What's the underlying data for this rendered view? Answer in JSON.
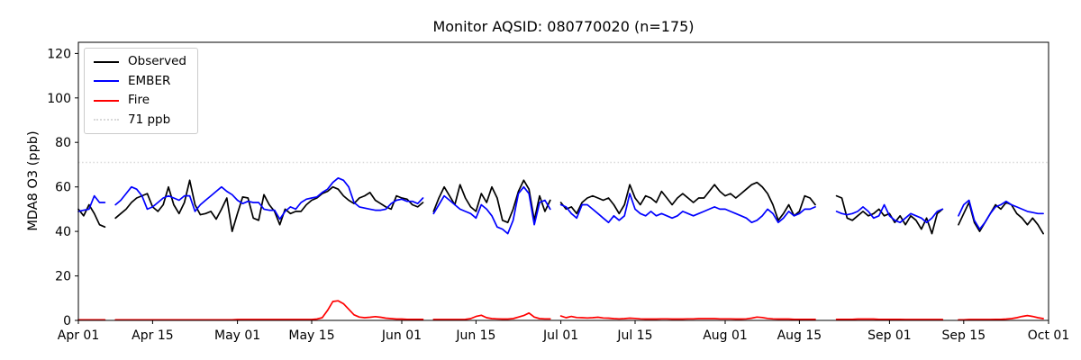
{
  "chart_data": {
    "type": "line",
    "title": "Monitor AQSID: 080770020 (n=175)",
    "ylabel": "MDA8 O3 (ppb)",
    "background": "#ffffff",
    "x_axis": {
      "start_date": "Apr 01",
      "end_date": "Oct 01",
      "cadence": "daily",
      "total_days": 183,
      "tick_labels": [
        "Apr 01",
        "Apr 15",
        "May 01",
        "May 15",
        "Jun 01",
        "Jun 15",
        "Jul 01",
        "Jul 15",
        "Aug 01",
        "Aug 15",
        "Sep 01",
        "Sep 15",
        "Oct 01"
      ],
      "tick_day_offsets": [
        0,
        14,
        30,
        44,
        61,
        75,
        91,
        105,
        122,
        136,
        153,
        167,
        183
      ]
    },
    "y_axis": {
      "ticks": [
        0,
        20,
        40,
        60,
        80,
        100,
        120
      ],
      "lim": [
        0,
        125
      ]
    },
    "reference_line": {
      "value": 71,
      "label": "71 ppb",
      "color": "#d9d9d9",
      "style": "dotted"
    },
    "legend": {
      "position": "upper-left",
      "entries": [
        "Observed",
        "EMBER",
        "Fire",
        "71 ppb"
      ]
    },
    "series": [
      {
        "name": "Observed",
        "color": "#000000",
        "values": [
          50,
          47,
          52,
          48,
          43,
          42,
          null,
          46,
          48,
          50,
          53,
          55,
          56,
          57,
          51,
          49,
          52,
          60,
          52,
          48,
          53,
          63,
          52,
          47.5,
          48,
          49,
          45.5,
          50,
          55,
          40,
          48,
          55.5,
          55,
          46,
          45,
          56.5,
          52,
          49,
          43,
          50,
          48,
          49,
          49,
          52,
          54,
          55,
          57,
          58,
          60,
          59,
          56,
          54,
          52.5,
          55,
          56,
          57.5,
          54,
          52.5,
          51,
          50,
          56,
          55,
          54.5,
          52,
          51,
          53,
          null,
          49,
          55,
          60,
          56,
          52,
          61,
          55,
          51,
          49,
          57,
          53,
          60,
          55,
          45,
          44,
          50,
          58,
          63,
          59,
          45,
          56,
          49,
          54,
          null,
          53,
          50,
          51,
          48,
          53,
          55,
          56,
          55,
          54,
          55,
          52,
          48,
          52,
          61,
          55,
          52,
          56,
          55,
          53,
          58,
          55,
          52,
          55,
          57,
          55,
          53,
          55,
          55,
          58,
          61,
          58,
          56,
          57,
          55,
          57,
          59,
          61,
          62,
          60,
          57,
          52,
          45,
          48,
          52,
          47,
          49,
          56,
          55,
          52,
          null,
          null,
          null,
          56,
          55,
          46,
          45,
          47,
          49,
          47,
          48,
          50,
          47,
          48,
          44,
          47,
          43,
          47,
          45,
          41,
          46,
          39,
          48,
          50,
          null,
          null,
          43,
          48,
          53,
          44,
          40,
          44,
          48,
          52,
          50,
          53,
          52,
          48,
          46,
          43,
          46,
          43,
          39
        ]
      },
      {
        "name": "EMBER",
        "color": "#0000ff",
        "values": [
          49,
          49.5,
          50,
          56,
          53,
          53,
          null,
          52,
          54,
          57,
          60,
          59,
          56,
          50,
          51,
          53,
          55,
          56,
          55,
          54,
          56,
          56,
          49,
          52,
          54,
          56,
          58,
          60,
          58,
          56.5,
          54,
          52.5,
          53.5,
          53,
          53,
          50,
          49.5,
          49.5,
          45.5,
          49,
          51,
          50,
          53,
          54.5,
          55,
          55.5,
          57.5,
          59,
          62,
          64,
          63,
          60,
          53,
          51,
          50.5,
          50,
          49.5,
          49.5,
          50,
          52.5,
          54,
          54.5,
          53.5,
          53.5,
          52.5,
          55,
          null,
          48,
          52,
          56,
          54,
          52,
          50,
          49,
          48,
          46,
          52,
          50,
          47,
          42,
          41,
          39,
          45,
          57,
          60,
          57,
          43,
          53,
          54,
          50,
          null,
          52,
          51,
          48,
          46,
          52,
          52,
          50,
          48,
          46,
          44,
          47,
          45,
          47,
          57,
          50,
          48,
          47,
          49,
          47,
          48,
          47,
          46,
          47,
          49,
          48,
          47,
          48,
          49,
          50,
          51,
          50,
          50,
          49,
          48,
          47,
          46,
          44,
          45,
          47,
          50,
          48,
          44,
          46,
          49,
          47,
          48,
          50,
          50,
          51,
          null,
          null,
          null,
          49,
          48,
          47.5,
          48,
          49,
          51,
          49,
          46,
          47,
          52,
          47,
          45,
          44,
          46,
          48,
          47,
          46,
          44,
          46,
          49,
          50,
          null,
          null,
          47,
          52,
          54,
          45,
          41,
          44,
          48,
          51,
          52,
          53.5,
          52,
          51,
          50,
          49,
          48.5,
          48,
          48
        ]
      },
      {
        "name": "Fire",
        "color": "#ff0000",
        "values": [
          0.3,
          0.3,
          0.3,
          0.3,
          0.3,
          0.3,
          null,
          0.3,
          0.3,
          0.3,
          0.3,
          0.3,
          0.3,
          0.3,
          0.3,
          0.3,
          0.3,
          0.3,
          0.3,
          0.3,
          0.3,
          0.3,
          0.3,
          0.3,
          0.3,
          0.3,
          0.3,
          0.3,
          0.3,
          0.3,
          0.4,
          0.4,
          0.4,
          0.4,
          0.4,
          0.4,
          0.4,
          0.4,
          0.4,
          0.4,
          0.4,
          0.4,
          0.4,
          0.4,
          0.4,
          0.6,
          1.2,
          4.5,
          8.5,
          8.8,
          7.5,
          5.0,
          2.5,
          1.5,
          1.2,
          1.4,
          1.7,
          1.4,
          1.0,
          0.8,
          0.6,
          0.6,
          0.5,
          0.5,
          0.5,
          0.5,
          null,
          0.4,
          0.4,
          0.4,
          0.4,
          0.4,
          0.4,
          0.5,
          0.8,
          1.8,
          2.3,
          1.2,
          0.8,
          0.7,
          0.6,
          0.6,
          0.8,
          1.5,
          2.2,
          3.3,
          1.5,
          0.8,
          0.7,
          0.7,
          null,
          2.0,
          1.2,
          1.8,
          1.3,
          1.2,
          1.1,
          1.2,
          1.4,
          1.1,
          1.0,
          0.8,
          0.7,
          0.8,
          1.0,
          0.9,
          0.7,
          0.6,
          0.6,
          0.6,
          0.7,
          0.7,
          0.6,
          0.6,
          0.6,
          0.7,
          0.7,
          0.8,
          0.8,
          0.8,
          0.8,
          0.7,
          0.7,
          0.7,
          0.6,
          0.6,
          0.7,
          1.0,
          1.5,
          1.3,
          0.9,
          0.7,
          0.6,
          0.6,
          0.6,
          0.5,
          0.5,
          0.5,
          0.5,
          0.5,
          null,
          null,
          null,
          0.5,
          0.5,
          0.5,
          0.5,
          0.6,
          0.6,
          0.6,
          0.6,
          0.5,
          0.5,
          0.5,
          0.5,
          0.5,
          0.4,
          0.4,
          0.4,
          0.4,
          0.4,
          0.4,
          0.4,
          0.4,
          null,
          null,
          0.3,
          0.3,
          0.4,
          0.4,
          0.4,
          0.4,
          0.4,
          0.5,
          0.5,
          0.6,
          0.8,
          1.2,
          1.8,
          2.2,
          1.8,
          1.2,
          0.8
        ]
      }
    ]
  }
}
